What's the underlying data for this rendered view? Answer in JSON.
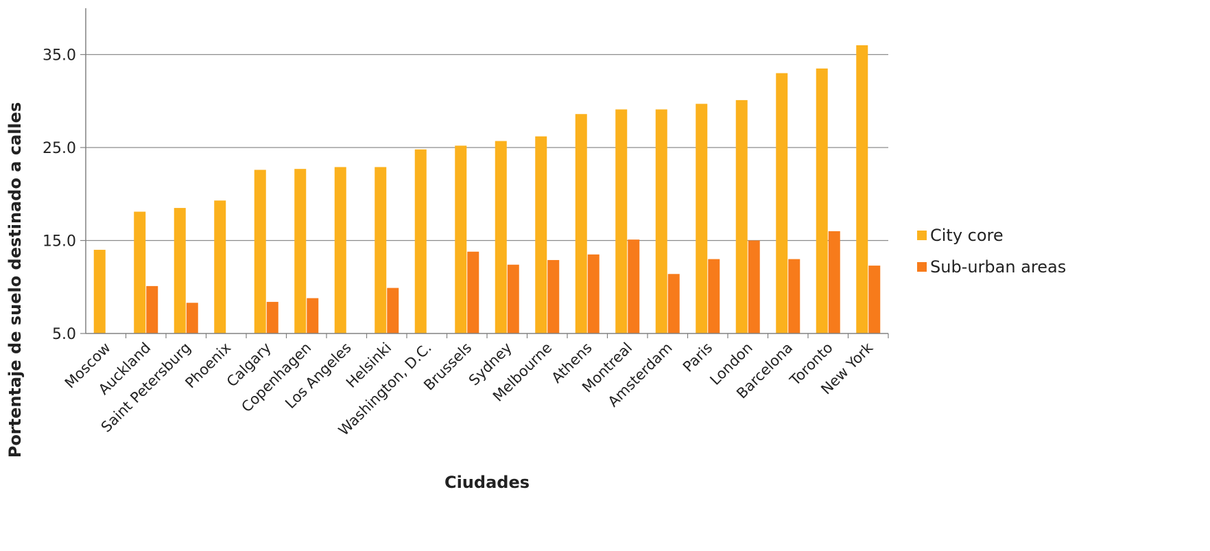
{
  "chart_data": {
    "type": "bar",
    "title": "",
    "xlabel": "Ciudades",
    "ylabel": "Portentaje de suelo destinado a calles",
    "ylim": [
      5,
      40
    ],
    "yticks": [
      "5.0",
      "15.0",
      "25.0",
      "35.0"
    ],
    "grid": true,
    "legend_position": "right",
    "categories": [
      "Moscow",
      "Auckland",
      "Saint Petersburg",
      "Phoenix",
      "Calgary",
      "Copenhagen",
      "Los Angeles",
      "Helsinki",
      "Washington, D.C.",
      "Brussels",
      "Sydney",
      "Melbourne",
      "Athens",
      "Montreal",
      "Amsterdam",
      "Paris",
      "London",
      "Barcelona",
      "Toronto",
      "New York"
    ],
    "series": [
      {
        "name": "City core",
        "color": "#FBB11D",
        "values": [
          14.0,
          18.1,
          18.5,
          19.3,
          22.6,
          22.7,
          22.9,
          22.9,
          24.8,
          25.2,
          25.7,
          26.2,
          28.6,
          29.1,
          29.1,
          29.7,
          30.1,
          33.0,
          33.5,
          36.0
        ]
      },
      {
        "name": "Sub-urban areas",
        "color": "#F77B1B",
        "values": [
          null,
          10.1,
          8.3,
          null,
          8.4,
          8.8,
          null,
          9.9,
          null,
          13.8,
          12.4,
          12.9,
          13.5,
          15.1,
          11.4,
          13.0,
          15.0,
          13.0,
          16.0,
          12.3
        ]
      }
    ]
  }
}
